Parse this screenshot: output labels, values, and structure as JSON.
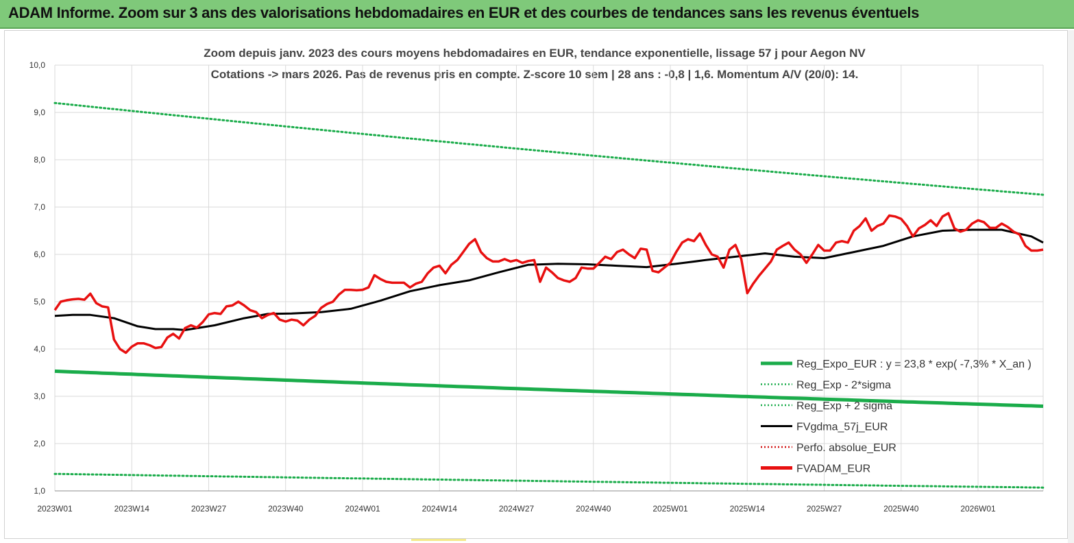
{
  "banner": {
    "title": "ADAM Informe. Zoom sur 3 ans des valorisations hebdomadaires en EUR et des courbes de tendances sans les revenus éventuels"
  },
  "chart_data": {
    "type": "line",
    "title_line1": "Zoom depuis janv. 2023 des cours moyens hebdomadaires en EUR, tendance exponentielle, lissage 57 j pour Aegon NV",
    "title_line2": "Cotations -> mars 2026. Pas de revenus pris en compte. Z-score 10 sem | 28 ans : -0,8 | 1,6. Momentum A/V (20/0): 14.",
    "ylim": [
      1.0,
      10.0
    ],
    "y_ticks": [
      "10,0",
      "9,0",
      "8,0",
      "7,0",
      "6,0",
      "5,0",
      "4,0",
      "3,0",
      "2,0",
      "1,0"
    ],
    "x_tick_labels": [
      "2023W01",
      "2023W14",
      "2023W27",
      "2023W40",
      "2024W01",
      "2024W14",
      "2024W27",
      "2024W40",
      "2025W01",
      "2025W14",
      "2025W27",
      "2025W40",
      "2026W01"
    ],
    "x_tick_index": [
      0,
      13,
      26,
      39,
      52,
      65,
      78,
      91,
      104,
      117,
      130,
      143,
      156
    ],
    "n_weeks": 168,
    "legend": [
      {
        "name": "Reg_Expo_EUR : y = 23,8 * exp( -7,3% *  X_an )",
        "color": "#1aac4a",
        "style": "solid-thick"
      },
      {
        "name": "Reg_Exp - 2*sigma",
        "color": "#1aac4a",
        "style": "dotted"
      },
      {
        "name": "Reg_Exp + 2 sigma",
        "color": "#1aac4a",
        "style": "dotted"
      },
      {
        "name": "FVgdma_57j_EUR",
        "color": "#000000",
        "style": "solid"
      },
      {
        "name": "Perfo. absolue_EUR",
        "color": "#d01010",
        "style": "dotted"
      },
      {
        "name": "FVADAM_EUR",
        "color": "#e81010",
        "style": "solid-thick"
      }
    ],
    "series": [
      {
        "name": "Reg_Expo_EUR",
        "start": 3.53,
        "end": 2.79
      },
      {
        "name": "Reg_Exp - 2*sigma",
        "start": 1.36,
        "end": 1.07
      },
      {
        "name": "Reg_Exp + 2 sigma",
        "start": 9.2,
        "end": 7.26
      },
      {
        "name": "FVgdma_57j_EUR",
        "points": [
          [
            0,
            4.7
          ],
          [
            3,
            4.72
          ],
          [
            6,
            4.72
          ],
          [
            10,
            4.65
          ],
          [
            14,
            4.48
          ],
          [
            17,
            4.42
          ],
          [
            20,
            4.42
          ],
          [
            22,
            4.4
          ],
          [
            27,
            4.5
          ],
          [
            32,
            4.65
          ],
          [
            36,
            4.74
          ],
          [
            40,
            4.75
          ],
          [
            45,
            4.78
          ],
          [
            50,
            4.85
          ],
          [
            55,
            5.02
          ],
          [
            60,
            5.22
          ],
          [
            65,
            5.35
          ],
          [
            70,
            5.45
          ],
          [
            75,
            5.62
          ],
          [
            80,
            5.78
          ],
          [
            85,
            5.8
          ],
          [
            90,
            5.79
          ],
          [
            95,
            5.76
          ],
          [
            100,
            5.73
          ],
          [
            105,
            5.8
          ],
          [
            110,
            5.88
          ],
          [
            115,
            5.95
          ],
          [
            120,
            6.02
          ],
          [
            125,
            5.95
          ],
          [
            130,
            5.92
          ],
          [
            135,
            6.05
          ],
          [
            140,
            6.18
          ],
          [
            145,
            6.38
          ],
          [
            150,
            6.5
          ],
          [
            155,
            6.52
          ],
          [
            160,
            6.52
          ],
          [
            165,
            6.38
          ],
          [
            167,
            6.25
          ]
        ]
      },
      {
        "name": "FVADAM_EUR",
        "points": [
          [
            0,
            4.82
          ],
          [
            1,
            5.0
          ],
          [
            2,
            5.03
          ],
          [
            3,
            5.05
          ],
          [
            4,
            5.06
          ],
          [
            5,
            5.04
          ],
          [
            6,
            5.17
          ],
          [
            7,
            4.97
          ],
          [
            8,
            4.9
          ],
          [
            9,
            4.88
          ],
          [
            10,
            4.2
          ],
          [
            11,
            4.0
          ],
          [
            12,
            3.92
          ],
          [
            13,
            4.05
          ],
          [
            14,
            4.12
          ],
          [
            15,
            4.12
          ],
          [
            16,
            4.08
          ],
          [
            17,
            4.02
          ],
          [
            18,
            4.04
          ],
          [
            19,
            4.24
          ],
          [
            20,
            4.32
          ],
          [
            21,
            4.22
          ],
          [
            22,
            4.44
          ],
          [
            23,
            4.5
          ],
          [
            24,
            4.45
          ],
          [
            25,
            4.57
          ],
          [
            26,
            4.73
          ],
          [
            27,
            4.76
          ],
          [
            28,
            4.74
          ],
          [
            29,
            4.9
          ],
          [
            30,
            4.92
          ],
          [
            31,
            5.0
          ],
          [
            32,
            4.92
          ],
          [
            33,
            4.82
          ],
          [
            34,
            4.78
          ],
          [
            35,
            4.65
          ],
          [
            36,
            4.72
          ],
          [
            37,
            4.76
          ],
          [
            38,
            4.62
          ],
          [
            39,
            4.58
          ],
          [
            40,
            4.62
          ],
          [
            41,
            4.6
          ],
          [
            42,
            4.5
          ],
          [
            43,
            4.62
          ],
          [
            44,
            4.7
          ],
          [
            45,
            4.87
          ],
          [
            46,
            4.95
          ],
          [
            47,
            5.0
          ],
          [
            48,
            5.15
          ],
          [
            49,
            5.25
          ],
          [
            50,
            5.25
          ],
          [
            51,
            5.24
          ],
          [
            52,
            5.25
          ],
          [
            53,
            5.3
          ],
          [
            54,
            5.56
          ],
          [
            55,
            5.48
          ],
          [
            56,
            5.42
          ],
          [
            57,
            5.4
          ],
          [
            58,
            5.4
          ],
          [
            59,
            5.4
          ],
          [
            60,
            5.3
          ],
          [
            61,
            5.38
          ],
          [
            62,
            5.42
          ],
          [
            63,
            5.6
          ],
          [
            64,
            5.72
          ],
          [
            65,
            5.76
          ],
          [
            66,
            5.6
          ],
          [
            67,
            5.78
          ],
          [
            68,
            5.88
          ],
          [
            69,
            6.05
          ],
          [
            70,
            6.22
          ],
          [
            71,
            6.32
          ],
          [
            72,
            6.05
          ],
          [
            73,
            5.92
          ],
          [
            74,
            5.85
          ],
          [
            75,
            5.85
          ],
          [
            76,
            5.9
          ],
          [
            77,
            5.85
          ],
          [
            78,
            5.88
          ],
          [
            79,
            5.82
          ],
          [
            80,
            5.86
          ],
          [
            81,
            5.88
          ],
          [
            82,
            5.42
          ],
          [
            83,
            5.72
          ],
          [
            84,
            5.62
          ],
          [
            85,
            5.5
          ],
          [
            86,
            5.45
          ],
          [
            87,
            5.42
          ],
          [
            88,
            5.5
          ],
          [
            89,
            5.72
          ],
          [
            90,
            5.7
          ],
          [
            91,
            5.7
          ],
          [
            92,
            5.82
          ],
          [
            93,
            5.95
          ],
          [
            94,
            5.9
          ],
          [
            95,
            6.05
          ],
          [
            96,
            6.1
          ],
          [
            97,
            6.0
          ],
          [
            98,
            5.92
          ],
          [
            99,
            6.12
          ],
          [
            100,
            6.1
          ],
          [
            101,
            5.65
          ],
          [
            102,
            5.62
          ],
          [
            103,
            5.72
          ],
          [
            104,
            5.82
          ],
          [
            105,
            6.05
          ],
          [
            106,
            6.25
          ],
          [
            107,
            6.32
          ],
          [
            108,
            6.28
          ],
          [
            109,
            6.44
          ],
          [
            110,
            6.2
          ],
          [
            111,
            6.0
          ],
          [
            112,
            5.95
          ],
          [
            113,
            5.72
          ],
          [
            114,
            6.1
          ],
          [
            115,
            6.2
          ],
          [
            116,
            5.9
          ],
          [
            117,
            5.18
          ],
          [
            118,
            5.38
          ],
          [
            119,
            5.55
          ],
          [
            120,
            5.7
          ],
          [
            121,
            5.85
          ],
          [
            122,
            6.1
          ],
          [
            123,
            6.18
          ],
          [
            124,
            6.25
          ],
          [
            125,
            6.1
          ],
          [
            126,
            6.0
          ],
          [
            127,
            5.82
          ],
          [
            128,
            6.0
          ],
          [
            129,
            6.2
          ],
          [
            130,
            6.08
          ],
          [
            131,
            6.08
          ],
          [
            132,
            6.25
          ],
          [
            133,
            6.28
          ],
          [
            134,
            6.25
          ],
          [
            135,
            6.5
          ],
          [
            136,
            6.6
          ],
          [
            137,
            6.76
          ],
          [
            138,
            6.5
          ],
          [
            139,
            6.6
          ],
          [
            140,
            6.65
          ],
          [
            141,
            6.82
          ],
          [
            142,
            6.8
          ],
          [
            143,
            6.75
          ],
          [
            144,
            6.6
          ],
          [
            145,
            6.38
          ],
          [
            146,
            6.55
          ],
          [
            147,
            6.62
          ],
          [
            148,
            6.72
          ],
          [
            149,
            6.6
          ],
          [
            150,
            6.8
          ],
          [
            151,
            6.87
          ],
          [
            152,
            6.55
          ],
          [
            153,
            6.48
          ],
          [
            154,
            6.52
          ],
          [
            155,
            6.65
          ],
          [
            156,
            6.72
          ],
          [
            157,
            6.68
          ],
          [
            158,
            6.56
          ],
          [
            159,
            6.56
          ],
          [
            160,
            6.65
          ],
          [
            161,
            6.58
          ],
          [
            162,
            6.48
          ],
          [
            163,
            6.42
          ],
          [
            164,
            6.18
          ],
          [
            165,
            6.08
          ],
          [
            166,
            6.08
          ],
          [
            167,
            6.1
          ]
        ]
      }
    ]
  }
}
